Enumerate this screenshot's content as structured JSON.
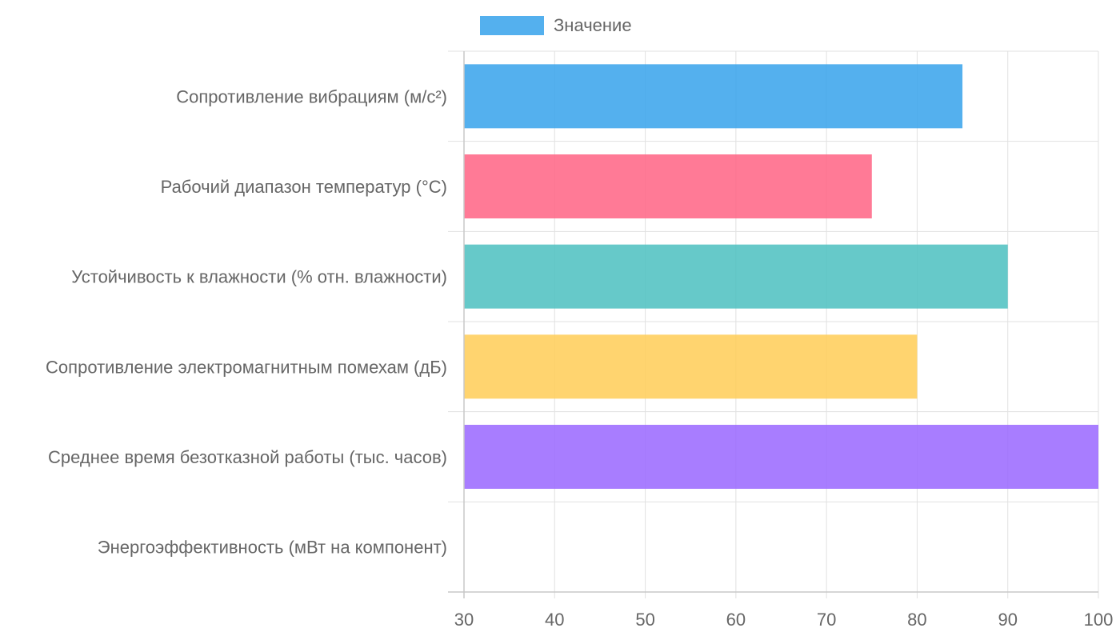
{
  "legend": {
    "label": "Значение"
  },
  "chart_data": {
    "type": "bar",
    "orientation": "horizontal",
    "categories": [
      "Сопротивление вибрациям (м/с²)",
      "Рабочий диапазон температур (°C)",
      "Устойчивость к влажности (% отн. влажности)",
      "Сопротивление электромагнитным помехам (дБ)",
      "Среднее время безотказной работы (тыс. часов)",
      "Энергоэффективность (мВт на компонент)"
    ],
    "series": [
      {
        "name": "Значение",
        "values": [
          85,
          75,
          90,
          80,
          100,
          30
        ]
      }
    ],
    "colors": [
      "#36a2eb",
      "#ff6384",
      "#4bc0c0",
      "#ffcd56",
      "#9966ff",
      "#ff9f40"
    ],
    "xlim": [
      30,
      100
    ],
    "xticks": [
      30,
      40,
      50,
      60,
      70,
      80,
      90,
      100
    ],
    "title": "",
    "xlabel": "",
    "ylabel": "",
    "grid": true,
    "legend_position": "top"
  }
}
